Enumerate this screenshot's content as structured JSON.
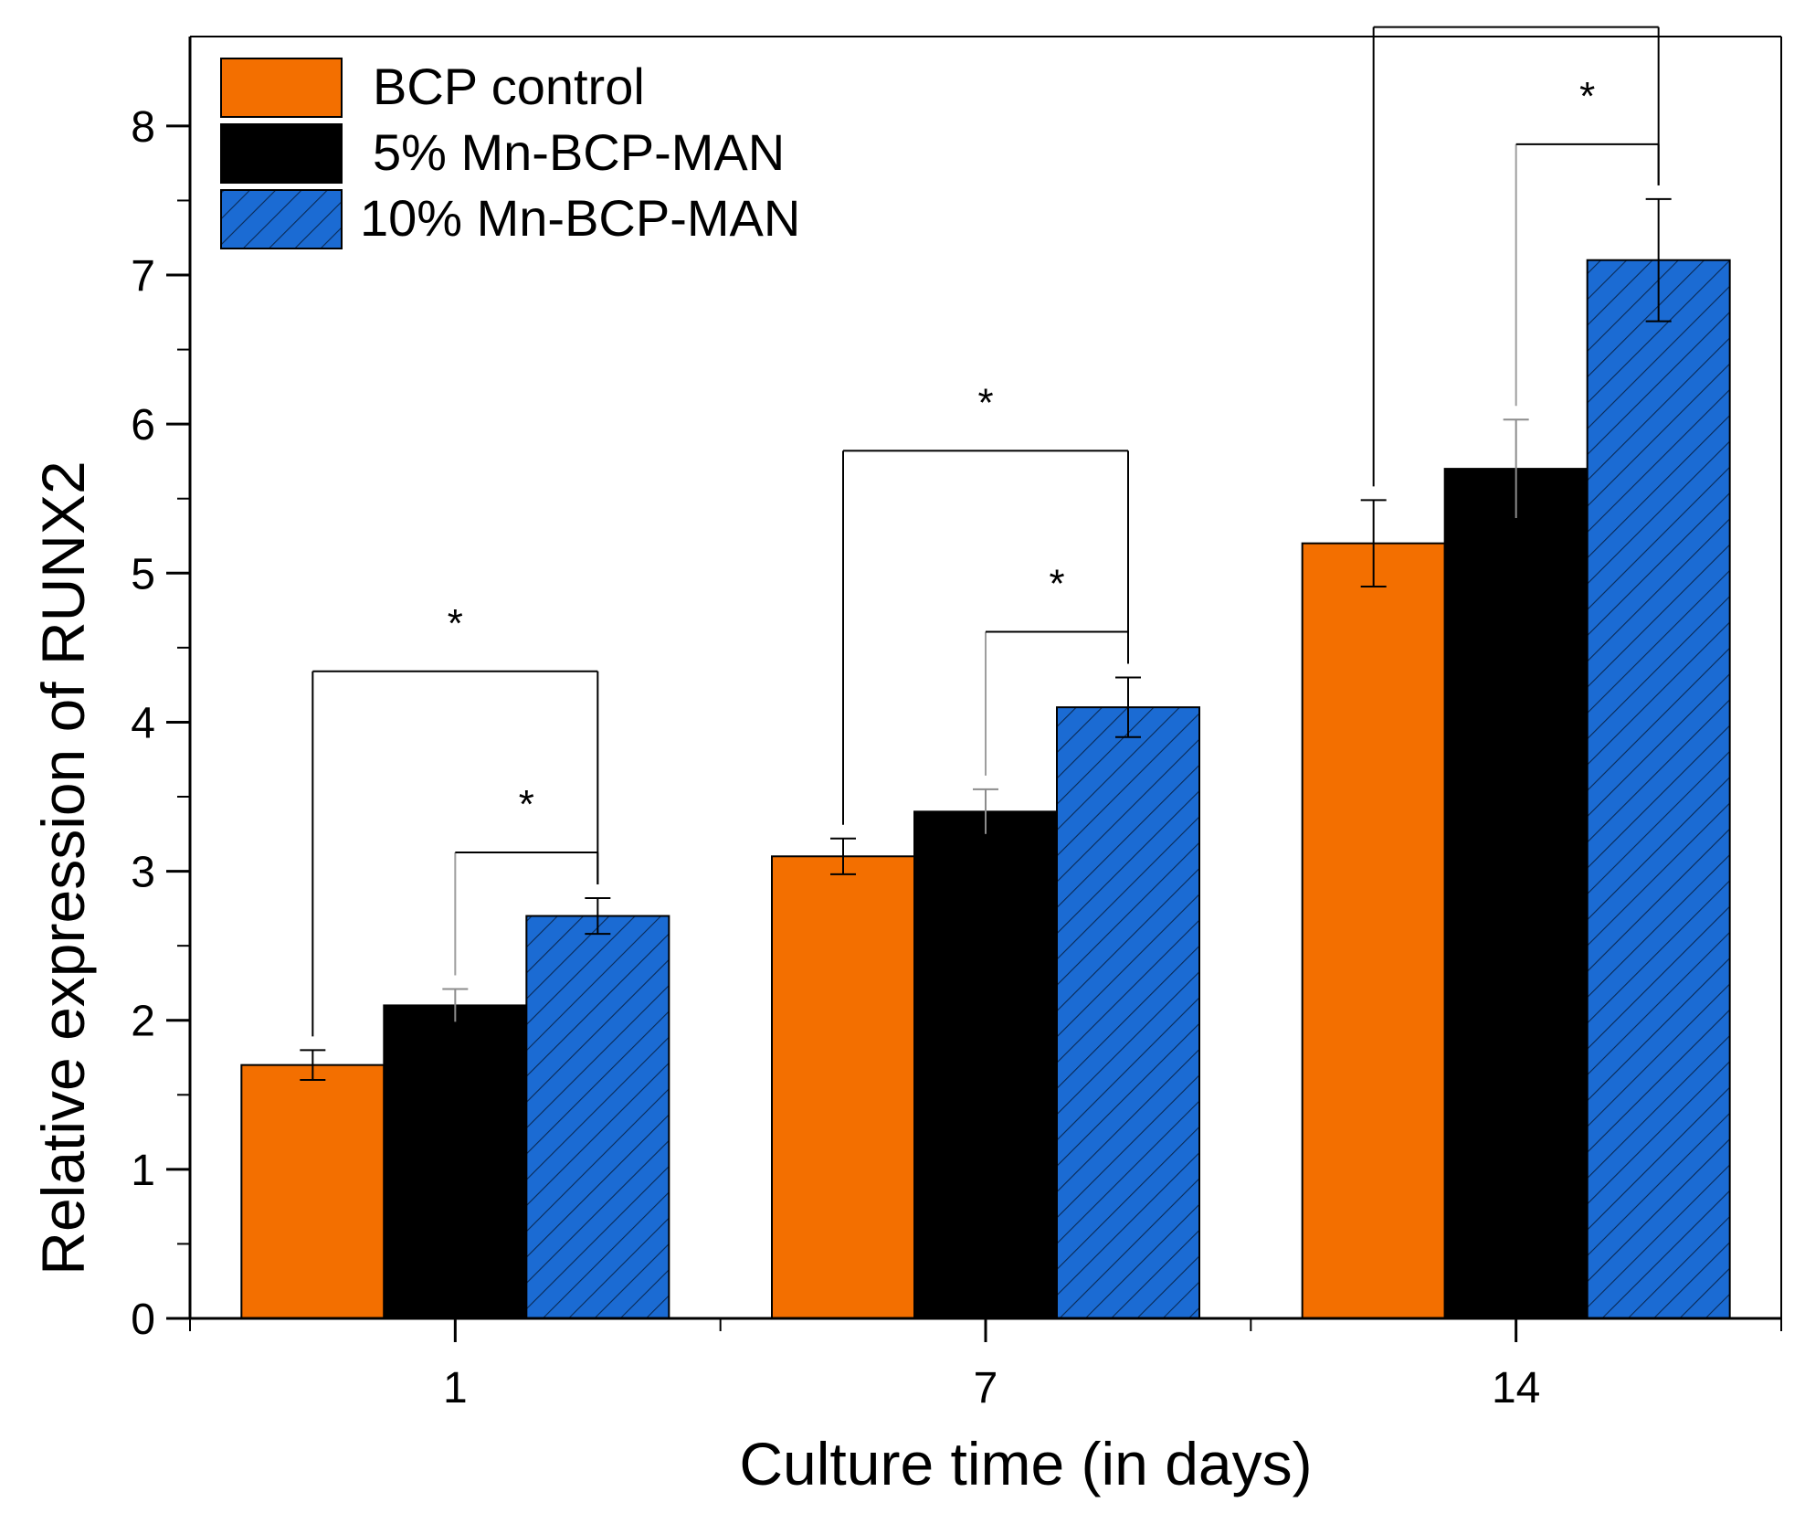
{
  "chart_data": {
    "type": "bar",
    "title": "",
    "xlabel": "Culture time (in days)",
    "ylabel": "Relative expression of RUNX2",
    "categories": [
      "1",
      "7",
      "14"
    ],
    "ylim": [
      0,
      8.6
    ],
    "yticks": [
      0,
      1,
      2,
      3,
      4,
      5,
      6,
      7,
      8
    ],
    "series": [
      {
        "name": "BCP control",
        "color": "#f36f00",
        "pattern": "solid",
        "values": [
          1.7,
          3.1,
          5.2
        ],
        "errors": [
          0.1,
          0.12,
          0.29
        ]
      },
      {
        "name": "5% Mn-BCP-MAN",
        "color": "#000000",
        "pattern": "solid",
        "values": [
          2.1,
          3.4,
          5.7
        ],
        "errors": [
          0.11,
          0.15,
          0.33
        ]
      },
      {
        "name": "10% Mn-BCP-MAN",
        "color": "#1b6bd3",
        "pattern": "hatch",
        "values": [
          2.7,
          4.1,
          7.1
        ],
        "errors": [
          0.12,
          0.2,
          0.41
        ]
      }
    ],
    "legend_position": "top-left",
    "significance": [
      {
        "category": 0,
        "from_series": 0,
        "to_series": 2,
        "label": "*"
      },
      {
        "category": 0,
        "from_series": 1,
        "to_series": 2,
        "label": "*"
      },
      {
        "category": 1,
        "from_series": 0,
        "to_series": 2,
        "label": "*"
      },
      {
        "category": 1,
        "from_series": 1,
        "to_series": 2,
        "label": "*"
      },
      {
        "category": 2,
        "from_series": 0,
        "to_series": 2,
        "label": "*"
      },
      {
        "category": 2,
        "from_series": 1,
        "to_series": 2,
        "label": "*"
      }
    ]
  }
}
